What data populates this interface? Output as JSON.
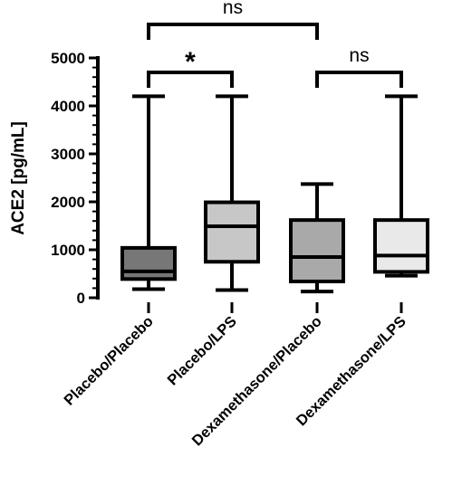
{
  "chart_data": {
    "type": "box",
    "title": "",
    "xlabel": "",
    "ylabel": "ACE2 [pg/mL]",
    "ylim": [
      0,
      5000
    ],
    "yticks": [
      0,
      1000,
      2000,
      3000,
      4000,
      5000
    ],
    "ytick_labels": [
      "0",
      "1000",
      "2000",
      "3000",
      "4000",
      "5000"
    ],
    "grid": false,
    "legend": "none",
    "categories": [
      "Placebo/Placebo",
      "Placebo/LPS",
      "Dexamethasone/Placebo",
      "Dexamethasone/LPS"
    ],
    "boxes": [
      {
        "whisker_low": 180,
        "q1": 390,
        "median": 550,
        "q3": 1040,
        "whisker_high": 4200,
        "fill": "#777777"
      },
      {
        "whisker_low": 160,
        "q1": 750,
        "median": 1490,
        "q3": 1990,
        "whisker_high": 4200,
        "fill": "#c7c7c7"
      },
      {
        "whisker_low": 130,
        "q1": 340,
        "median": 850,
        "q3": 1620,
        "whisker_high": 2370,
        "fill": "#a9a9a9"
      },
      {
        "whisker_low": 460,
        "q1": 540,
        "median": 880,
        "q3": 1620,
        "whisker_high": 4200,
        "fill": "#e9e9e9"
      }
    ],
    "significance": [
      {
        "from": 0,
        "to": 2,
        "label": "ns",
        "level": 1
      },
      {
        "from": 0,
        "to": 1,
        "label": "*",
        "level": 0
      },
      {
        "from": 2,
        "to": 3,
        "label": "ns",
        "level": 0
      }
    ]
  }
}
